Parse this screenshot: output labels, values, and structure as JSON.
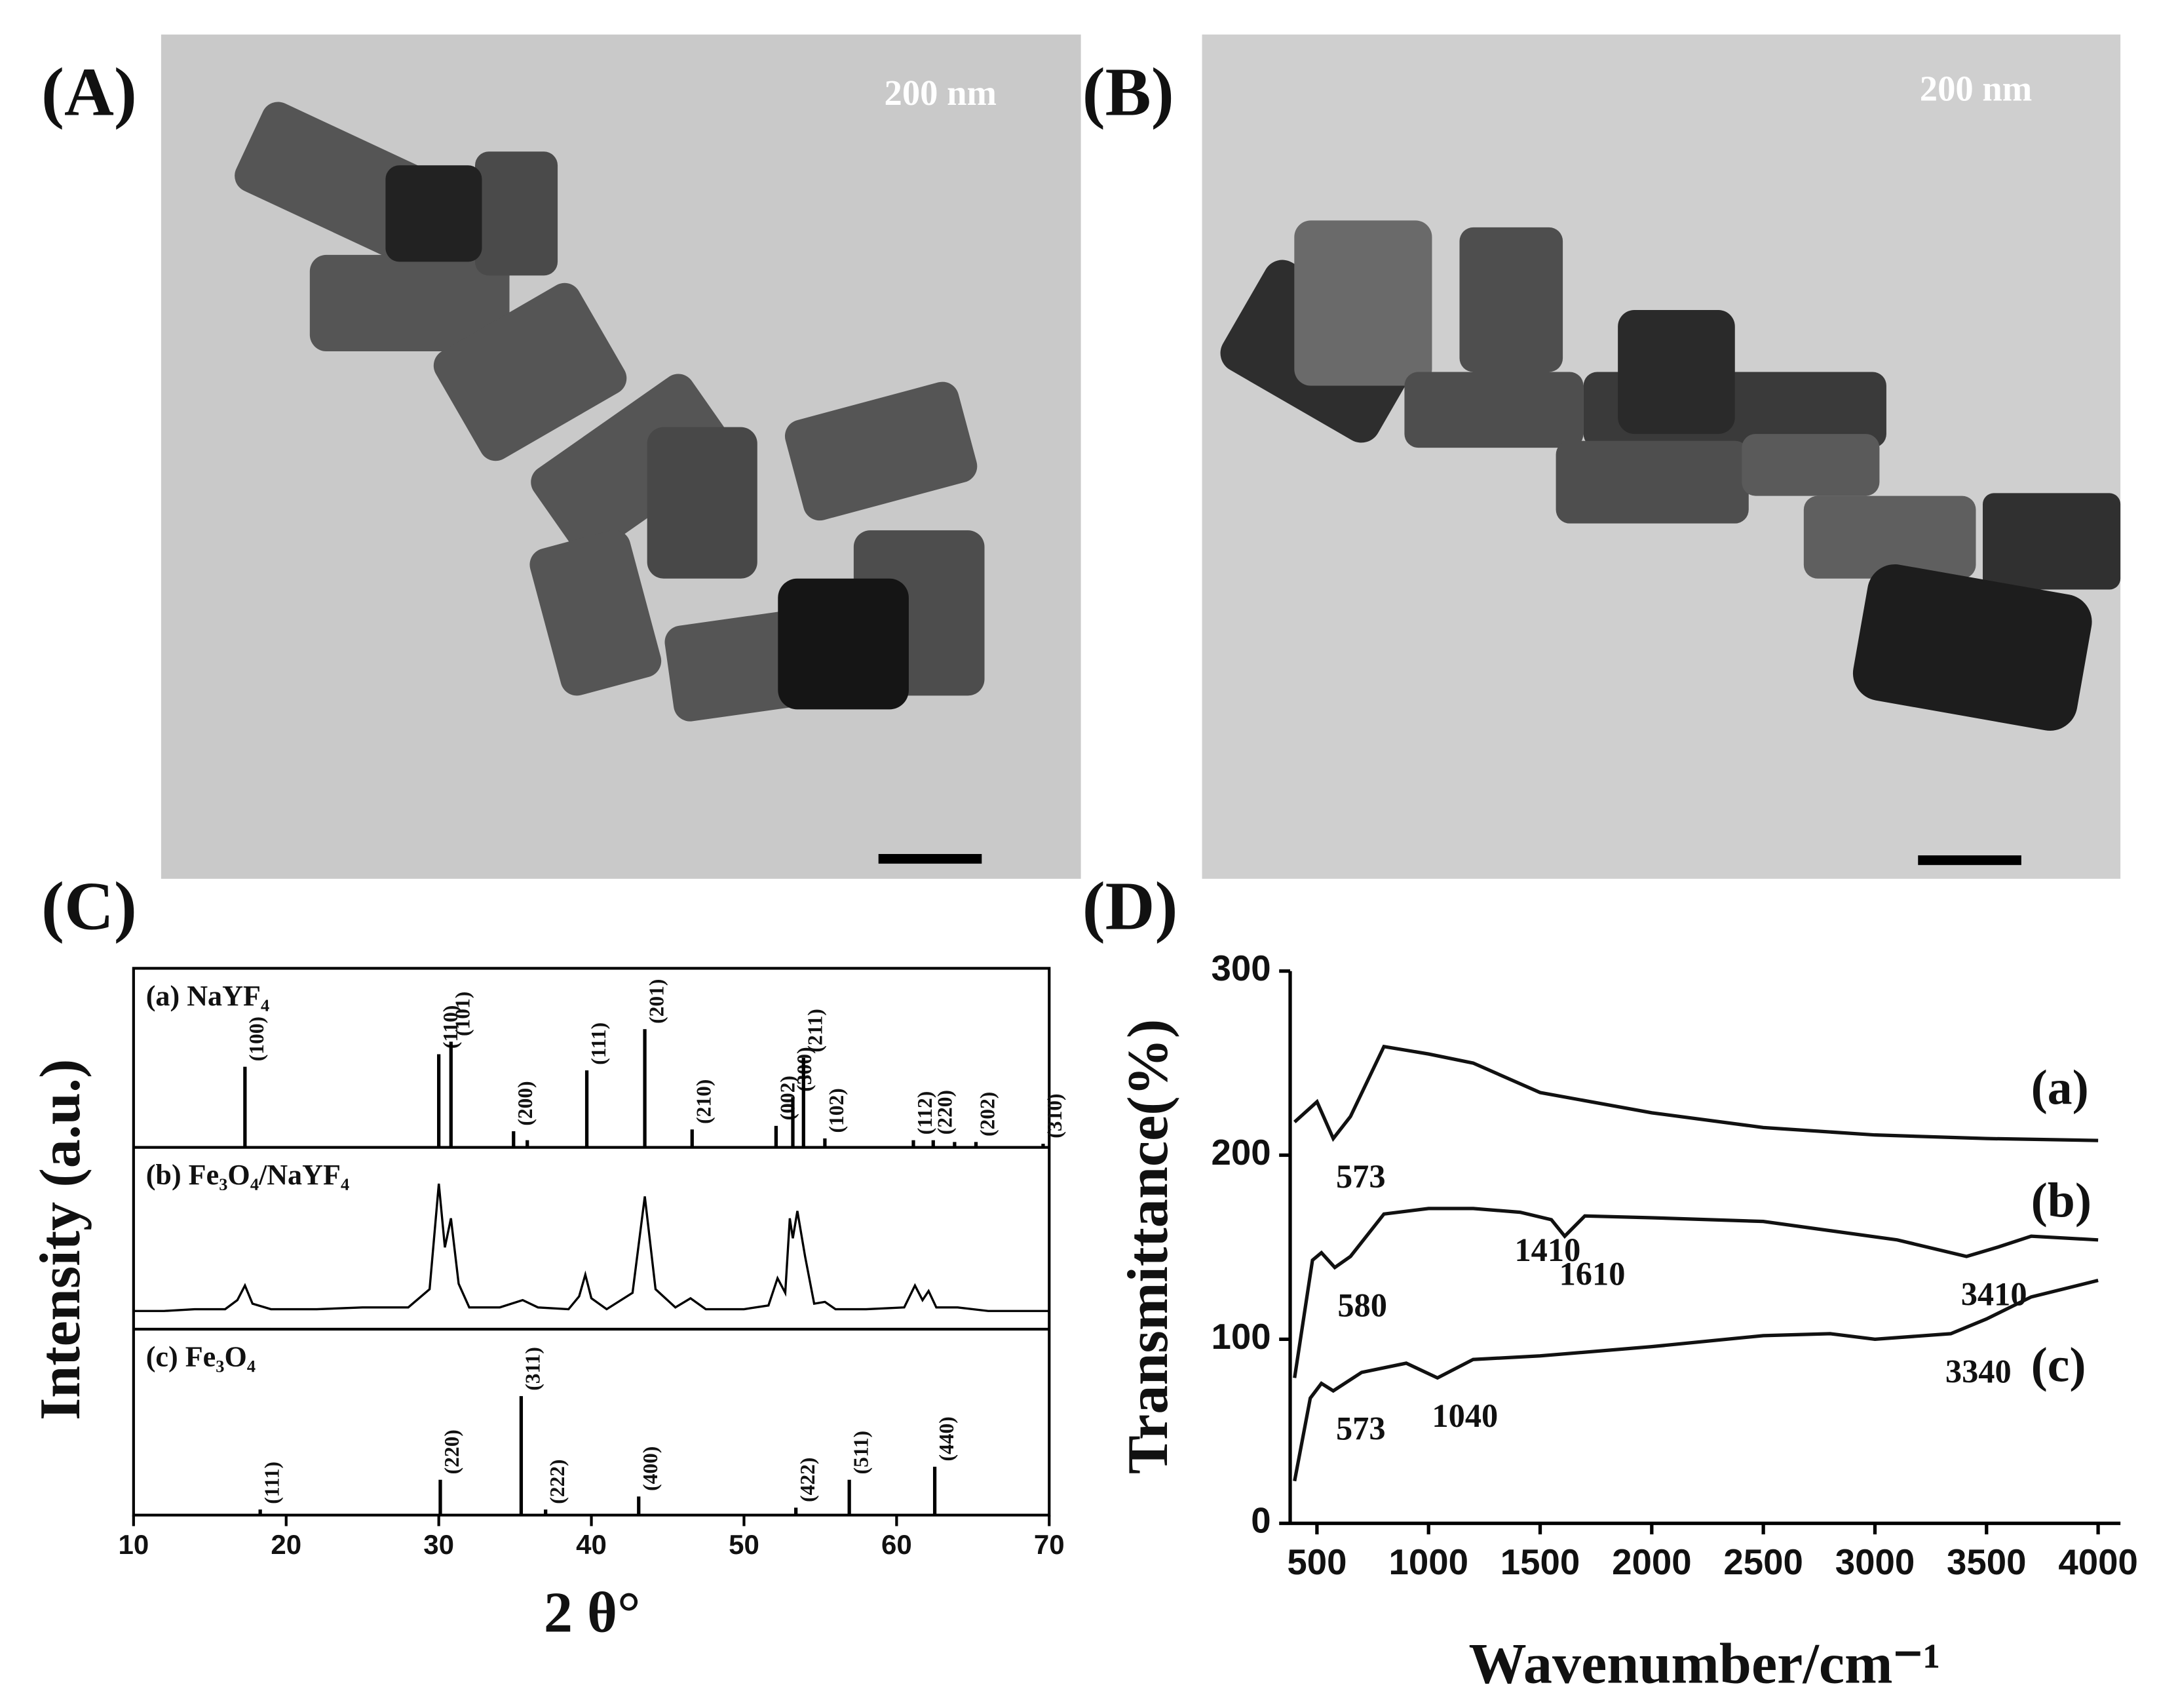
{
  "panel_labels": [
    "(A)",
    "(B)",
    "(C)",
    "(D)"
  ],
  "images": [
    {
      "scale_label": "200 nm"
    },
    {
      "scale_label": "200 nm"
    }
  ],
  "chart_data": [
    {
      "type": "xrd-stack",
      "xlabel": "2 θ°",
      "ylabel": "Intensity (a.u.)",
      "xlim": [
        10,
        70
      ],
      "xticks": [
        10,
        20,
        30,
        40,
        50,
        60,
        70
      ],
      "panels": [
        {
          "title": "(a) NaYF₄",
          "type": "stick",
          "ylim": [
            0,
            100
          ],
          "positions": [
            17.3,
            30.0,
            30.8,
            34.9,
            35.8,
            39.7,
            43.5,
            46.6,
            52.1,
            53.2,
            53.9,
            55.3,
            61.1,
            62.4,
            63.8,
            65.2,
            69.6
          ],
          "values": [
            45,
            52,
            59,
            9,
            4,
            43,
            66,
            10,
            12,
            28,
            50,
            5,
            4,
            4,
            3,
            3,
            2
          ],
          "hkl": [
            "(100)",
            "(110)",
            "(101)",
            "(200)",
            null,
            "(111)",
            "(201)",
            "(210)",
            "(002)",
            "(300)",
            "(211)",
            "(102)",
            "(112)",
            "(220)",
            null,
            "(202)",
            "(310)"
          ]
        },
        {
          "title": "(b) Fe₃O₄/NaYF₄",
          "type": "line",
          "ylim": [
            0,
            100
          ],
          "x": [
            10,
            12,
            14,
            16,
            16.8,
            17.3,
            17.8,
            19,
            22,
            25,
            28,
            29.4,
            30.0,
            30.4,
            30.8,
            31.3,
            32,
            34,
            35.5,
            36.5,
            38.5,
            39.2,
            39.6,
            40.0,
            41,
            42.7,
            43.5,
            44.2,
            45.5,
            46.5,
            47.5,
            50,
            51.6,
            52.2,
            52.7,
            53.0,
            53.2,
            53.5,
            54.0,
            54.6,
            55.3,
            56,
            58,
            60.5,
            61.2,
            61.7,
            62.1,
            62.6,
            64,
            66,
            68,
            70
          ],
          "values": [
            10,
            10,
            11,
            11,
            16,
            24,
            14,
            11,
            11,
            12,
            12,
            22,
            80,
            45,
            61,
            25,
            12,
            12,
            16,
            12,
            11,
            18,
            30,
            17,
            11,
            20,
            73,
            22,
            12,
            17,
            11,
            11,
            13,
            28,
            20,
            61,
            50,
            65,
            40,
            14,
            15,
            11,
            11,
            12,
            24,
            16,
            21,
            12,
            12,
            10,
            10,
            10
          ]
        },
        {
          "title": "(c) Fe₃O₄",
          "type": "stick",
          "ylim": [
            0,
            100
          ],
          "positions": [
            18.3,
            30.1,
            35.4,
            37.0,
            43.1,
            53.4,
            56.9,
            62.5
          ],
          "values": [
            3,
            19,
            64,
            3,
            10,
            4,
            19,
            26
          ],
          "hkl": [
            "(111)",
            "(220)",
            "(311)",
            "(222)",
            "(400)",
            "(422)",
            "(511)",
            "(440)"
          ]
        }
      ]
    },
    {
      "type": "line",
      "xlabel": "Wavenumber/cm⁻¹",
      "ylabel": "Transmittance(%)",
      "xlim": [
        380,
        4100
      ],
      "ylim": [
        0,
        300
      ],
      "xticks": [
        500,
        1000,
        1500,
        2000,
        2500,
        3000,
        3500,
        4000
      ],
      "yticks": [
        0,
        100,
        200,
        300
      ],
      "series": [
        {
          "name": "(a)",
          "color": "#111111",
          "x": [
            400,
            500,
            573,
            650,
            800,
            1000,
            1200,
            1500,
            2000,
            2500,
            3000,
            3500,
            4000
          ],
          "values": [
            218,
            229,
            209,
            221,
            259,
            255,
            250,
            234,
            223,
            215,
            211,
            209,
            208
          ],
          "peaks": [
            573
          ]
        },
        {
          "name": "(b)",
          "color": "#111111",
          "x": [
            400,
            480,
            520,
            580,
            650,
            800,
            1000,
            1200,
            1410,
            1550,
            1610,
            1700,
            2000,
            2500,
            2800,
            3100,
            3410,
            3550,
            3700,
            4000
          ],
          "values": [
            79,
            143,
            147,
            139,
            145,
            168,
            171,
            171,
            169,
            165,
            156,
            167,
            166,
            164,
            159,
            154,
            145,
            150,
            156,
            154
          ],
          "peaks": [
            580,
            1410,
            1610,
            3410
          ]
        },
        {
          "name": "(c)",
          "color": "#111111",
          "x": [
            400,
            470,
            520,
            573,
            700,
            900,
            1040,
            1200,
            1500,
            2000,
            2500,
            2800,
            3000,
            3340,
            3500,
            3700,
            4000
          ],
          "values": [
            23,
            68,
            76,
            72,
            82,
            87,
            79,
            89,
            91,
            96,
            102,
            103,
            100,
            103,
            111,
            123,
            132
          ],
          "peaks": [
            573,
            1040,
            3340
          ]
        }
      ]
    }
  ]
}
